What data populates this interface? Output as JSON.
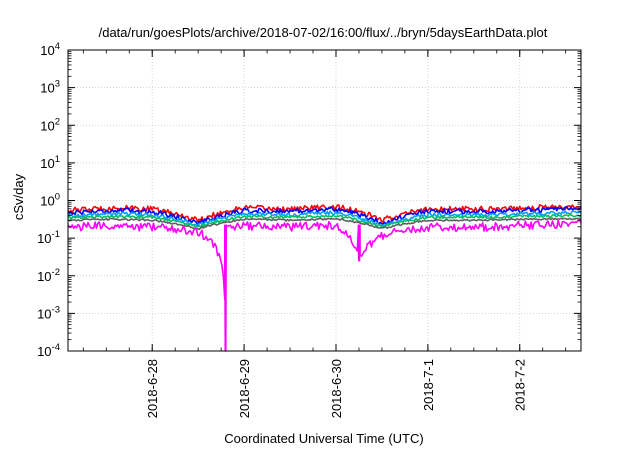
{
  "chart_data": {
    "type": "line",
    "title": "/data/run/goesPlots/archive/2018-07-02/16:00/flux/../bryn/5daysEarthData.plot",
    "xlabel": "Coordinated Universal Time (UTC)",
    "ylabel": "cSv/day",
    "yscale": "log",
    "ylim": [
      0.0001,
      10000
    ],
    "yticks": [
      {
        "value": 0.0001,
        "base": "10",
        "exp": "-4"
      },
      {
        "value": 0.001,
        "base": "10",
        "exp": "-3"
      },
      {
        "value": 0.01,
        "base": "10",
        "exp": "-2"
      },
      {
        "value": 0.1,
        "base": "10",
        "exp": "-1"
      },
      {
        "value": 1,
        "base": "10",
        "exp": "0"
      },
      {
        "value": 10,
        "base": "10",
        "exp": "1"
      },
      {
        "value": 100,
        "base": "10",
        "exp": "2"
      },
      {
        "value": 1000,
        "base": "10",
        "exp": "3"
      },
      {
        "value": 10000,
        "base": "10",
        "exp": "4"
      }
    ],
    "xlim": [
      "2018-06-27T02:00",
      "2018-07-02T16:00"
    ],
    "xticks": [
      {
        "value": "2018-06-28T00:00",
        "label": "2018-6-28"
      },
      {
        "value": "2018-06-29T00:00",
        "label": "2018-6-29"
      },
      {
        "value": "2018-06-30T00:00",
        "label": "2018-6-30"
      },
      {
        "value": "2018-07-01T00:00",
        "label": "2018-7-1"
      },
      {
        "value": "2018-07-02T00:00",
        "label": "2018-7-2"
      }
    ],
    "grid": true,
    "series": [
      {
        "color": "#ff0000",
        "base": 0.58,
        "noise": 0.32,
        "x": [
          "2018-06-27T02:00",
          "2018-06-27T14:00",
          "2018-06-28T00:00",
          "2018-06-28T12:00",
          "2018-06-29T00:00",
          "2018-06-29T12:00",
          "2018-06-30T00:00",
          "2018-06-30T12:00",
          "2018-07-01T00:00",
          "2018-07-01T12:00",
          "2018-07-02T00:00",
          "2018-07-02T16:00"
        ],
        "values": [
          0.55,
          0.65,
          0.6,
          0.3,
          0.65,
          0.6,
          0.7,
          0.3,
          0.6,
          0.6,
          0.65,
          0.7
        ]
      },
      {
        "color": "#0000ff",
        "base": 0.5,
        "noise": 0.3,
        "x": [
          "2018-06-27T02:00",
          "2018-06-27T14:00",
          "2018-06-28T00:00",
          "2018-06-28T12:00",
          "2018-06-29T00:00",
          "2018-06-29T12:00",
          "2018-06-30T00:00",
          "2018-06-30T12:00",
          "2018-07-01T00:00",
          "2018-07-01T12:00",
          "2018-07-02T00:00",
          "2018-07-02T16:00"
        ],
        "values": [
          0.48,
          0.55,
          0.52,
          0.25,
          0.55,
          0.52,
          0.6,
          0.25,
          0.52,
          0.52,
          0.55,
          0.6
        ]
      },
      {
        "color": "#00a0ff",
        "base": 0.42,
        "noise": 0.22,
        "x": [
          "2018-06-27T02:00",
          "2018-06-27T14:00",
          "2018-06-28T00:00",
          "2018-06-28T12:00",
          "2018-06-29T00:00",
          "2018-06-29T12:00",
          "2018-06-30T00:00",
          "2018-06-30T12:00",
          "2018-07-01T00:00",
          "2018-07-01T12:00",
          "2018-07-02T00:00",
          "2018-07-02T16:00"
        ],
        "values": [
          0.4,
          0.45,
          0.42,
          0.22,
          0.45,
          0.42,
          0.48,
          0.22,
          0.42,
          0.42,
          0.45,
          0.48
        ]
      },
      {
        "color": "#00c060",
        "base": 0.36,
        "noise": 0.15,
        "x": [
          "2018-06-27T02:00",
          "2018-06-27T14:00",
          "2018-06-28T00:00",
          "2018-06-28T12:00",
          "2018-06-29T00:00",
          "2018-06-29T12:00",
          "2018-06-30T00:00",
          "2018-06-30T12:00",
          "2018-07-01T00:00",
          "2018-07-01T12:00",
          "2018-07-02T00:00",
          "2018-07-02T16:00"
        ],
        "values": [
          0.35,
          0.38,
          0.36,
          0.2,
          0.38,
          0.36,
          0.4,
          0.2,
          0.36,
          0.36,
          0.38,
          0.4
        ]
      },
      {
        "color": "#606060",
        "base": 0.3,
        "noise": 0.1,
        "x": [
          "2018-06-27T02:00",
          "2018-06-27T14:00",
          "2018-06-28T00:00",
          "2018-06-28T12:00",
          "2018-06-29T00:00",
          "2018-06-29T12:00",
          "2018-06-30T00:00",
          "2018-06-30T12:00",
          "2018-07-01T00:00",
          "2018-07-01T12:00",
          "2018-07-02T00:00",
          "2018-07-02T16:00"
        ],
        "values": [
          0.3,
          0.32,
          0.3,
          0.18,
          0.32,
          0.3,
          0.33,
          0.18,
          0.3,
          0.3,
          0.32,
          0.33
        ]
      },
      {
        "color": "#ff00ff",
        "base": 0.22,
        "noise": 0.5,
        "x": [
          "2018-06-27T02:00",
          "2018-06-27T14:00",
          "2018-06-28T00:00",
          "2018-06-28T12:00",
          "2018-06-28T19:05",
          "2018-06-28T19:20",
          "2018-06-29T00:00",
          "2018-06-29T12:00",
          "2018-06-30T00:00",
          "2018-06-30T06:00",
          "2018-06-30T12:00",
          "2018-07-01T00:00",
          "2018-07-01T12:00",
          "2018-07-02T00:00",
          "2018-07-02T16:00"
        ],
        "values": [
          0.2,
          0.22,
          0.2,
          0.15,
          0.0001,
          0.2,
          0.22,
          0.2,
          0.22,
          0.025,
          0.12,
          0.2,
          0.2,
          0.22,
          0.25
        ]
      }
    ]
  }
}
